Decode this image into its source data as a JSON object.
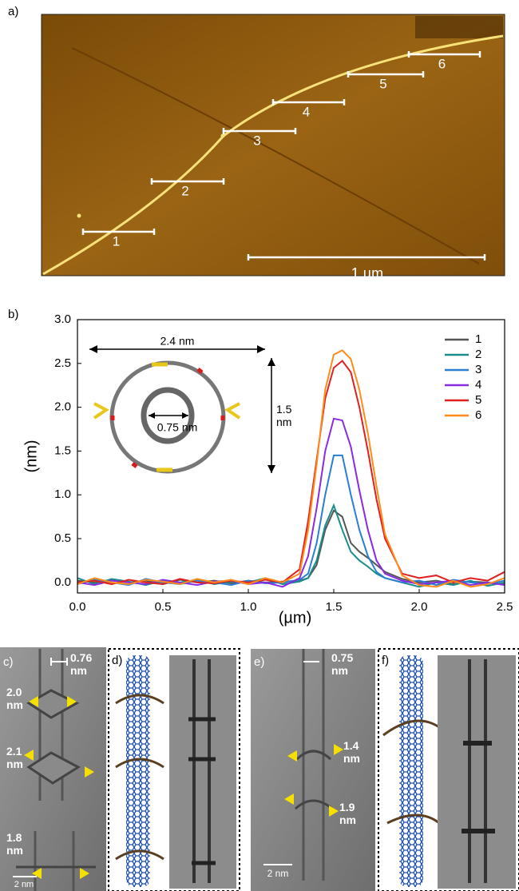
{
  "panel_labels": [
    "a)",
    "b)",
    "c)",
    "d)",
    "e)",
    "f)"
  ],
  "afm": {
    "markers": [
      "1",
      "2",
      "3",
      "4",
      "5",
      "6"
    ],
    "scale_bar": "1 µm"
  },
  "chart_data": {
    "type": "line",
    "x_label": "(µm)",
    "y_label": "(nm)",
    "x": [
      0,
      0.1,
      0.2,
      0.3,
      0.4,
      0.5,
      0.6,
      0.7,
      0.8,
      0.9,
      1.0,
      1.1,
      1.2,
      1.3,
      1.35,
      1.4,
      1.45,
      1.5,
      1.55,
      1.6,
      1.65,
      1.7,
      1.75,
      1.8,
      1.9,
      2.0,
      2.1,
      2.2,
      2.3,
      2.4,
      2.5
    ],
    "series": [
      {
        "name": "1",
        "color": "#555555",
        "values": [
          0.02,
          0.0,
          0.03,
          0.0,
          0.02,
          -0.02,
          0.03,
          0.0,
          0.02,
          -0.01,
          0.02,
          0.0,
          0.01,
          0.02,
          0.05,
          0.2,
          0.6,
          0.82,
          0.75,
          0.45,
          0.35,
          0.28,
          0.2,
          0.12,
          0.04,
          0.0,
          0.02,
          -0.02,
          0.01,
          0.0,
          -0.02
        ]
      },
      {
        "name": "2",
        "color": "#1a8c8c",
        "values": [
          0.05,
          -0.02,
          0.04,
          0.01,
          -0.03,
          0.02,
          0.0,
          0.03,
          -0.02,
          0.01,
          0.0,
          0.05,
          -0.02,
          0.01,
          0.05,
          0.25,
          0.65,
          0.88,
          0.6,
          0.35,
          0.25,
          0.18,
          0.1,
          0.05,
          0.0,
          -0.05,
          0.0,
          -0.03,
          0.02,
          -0.04,
          0.0
        ]
      },
      {
        "name": "3",
        "color": "#2a7fd4",
        "values": [
          -0.02,
          0.03,
          0.0,
          -0.03,
          0.04,
          0.0,
          -0.02,
          0.02,
          0.0,
          -0.03,
          0.02,
          -0.01,
          0.0,
          0.03,
          0.1,
          0.45,
          1.0,
          1.45,
          1.45,
          1.0,
          0.6,
          0.3,
          0.12,
          0.05,
          0.0,
          0.02,
          -0.03,
          0.03,
          0.0,
          -0.02,
          0.02
        ]
      },
      {
        "name": "4",
        "color": "#8a2be2",
        "values": [
          0.0,
          -0.03,
          0.02,
          0.0,
          -0.02,
          0.03,
          0.0,
          -0.03,
          0.01,
          0.02,
          -0.02,
          0.0,
          -0.05,
          0.05,
          0.3,
          0.85,
          1.5,
          1.87,
          1.85,
          1.55,
          1.05,
          0.6,
          0.25,
          0.1,
          0.02,
          -0.02,
          0.0,
          0.02,
          -0.03,
          0.0,
          -0.03
        ]
      },
      {
        "name": "5",
        "color": "#e02020",
        "values": [
          0.0,
          0.02,
          -0.02,
          0.03,
          0.0,
          -0.02,
          0.04,
          0.0,
          -0.01,
          0.02,
          0.0,
          0.03,
          0.0,
          0.15,
          0.7,
          1.4,
          2.1,
          2.45,
          2.53,
          2.4,
          2.0,
          1.5,
          0.95,
          0.5,
          0.1,
          0.05,
          0.08,
          0.0,
          0.05,
          0.02,
          0.12
        ]
      },
      {
        "name": "6",
        "color": "#ff8c1a",
        "values": [
          -0.02,
          0.05,
          0.0,
          -0.02,
          0.03,
          0.01,
          -0.02,
          0.04,
          0.0,
          0.03,
          -0.02,
          0.05,
          0.0,
          0.1,
          0.6,
          1.35,
          2.2,
          2.6,
          2.65,
          2.55,
          2.2,
          1.7,
          1.1,
          0.55,
          0.08,
          -0.03,
          -0.05,
          0.02,
          -0.05,
          -0.02,
          0.05
        ]
      }
    ],
    "xlim": [
      0,
      2.5
    ],
    "ylim": [
      -0.12,
      3.0
    ],
    "xticks": [
      {
        "value": 0,
        "label": "0.0"
      },
      {
        "value": 0.5,
        "label": "0.5"
      },
      {
        "value": 1,
        "label": "1.0"
      },
      {
        "value": 1.5,
        "label": "1.5"
      },
      {
        "value": 2,
        "label": "2.0"
      },
      {
        "value": 2.5,
        "label": "2.5"
      }
    ],
    "yticks": [
      {
        "value": 0,
        "label": "0.0"
      },
      {
        "value": 0.5,
        "label": "0.5"
      },
      {
        "value": 1,
        "label": "1.0"
      },
      {
        "value": 1.5,
        "label": "1.5"
      },
      {
        "value": 2,
        "label": "2.0"
      },
      {
        "value": 2.5,
        "label": "2.5"
      },
      {
        "value": 3,
        "label": "3.0"
      }
    ],
    "legend": "upper right",
    "inset_labels": {
      "width": "2.4 nm",
      "inner": "0.75 nm",
      "height": "1.5 nm"
    }
  },
  "tem": {
    "c": {
      "diameter": "0.76 nm",
      "ring1": "2.0 nm",
      "ring2": "2.1 nm",
      "ring3": "1.8 nm",
      "scale": "2 nm"
    },
    "e": {
      "diameter": "0.75 nm",
      "ring1": "1.4 nm",
      "ring2": "1.9 nm",
      "scale": "2 nm"
    }
  }
}
